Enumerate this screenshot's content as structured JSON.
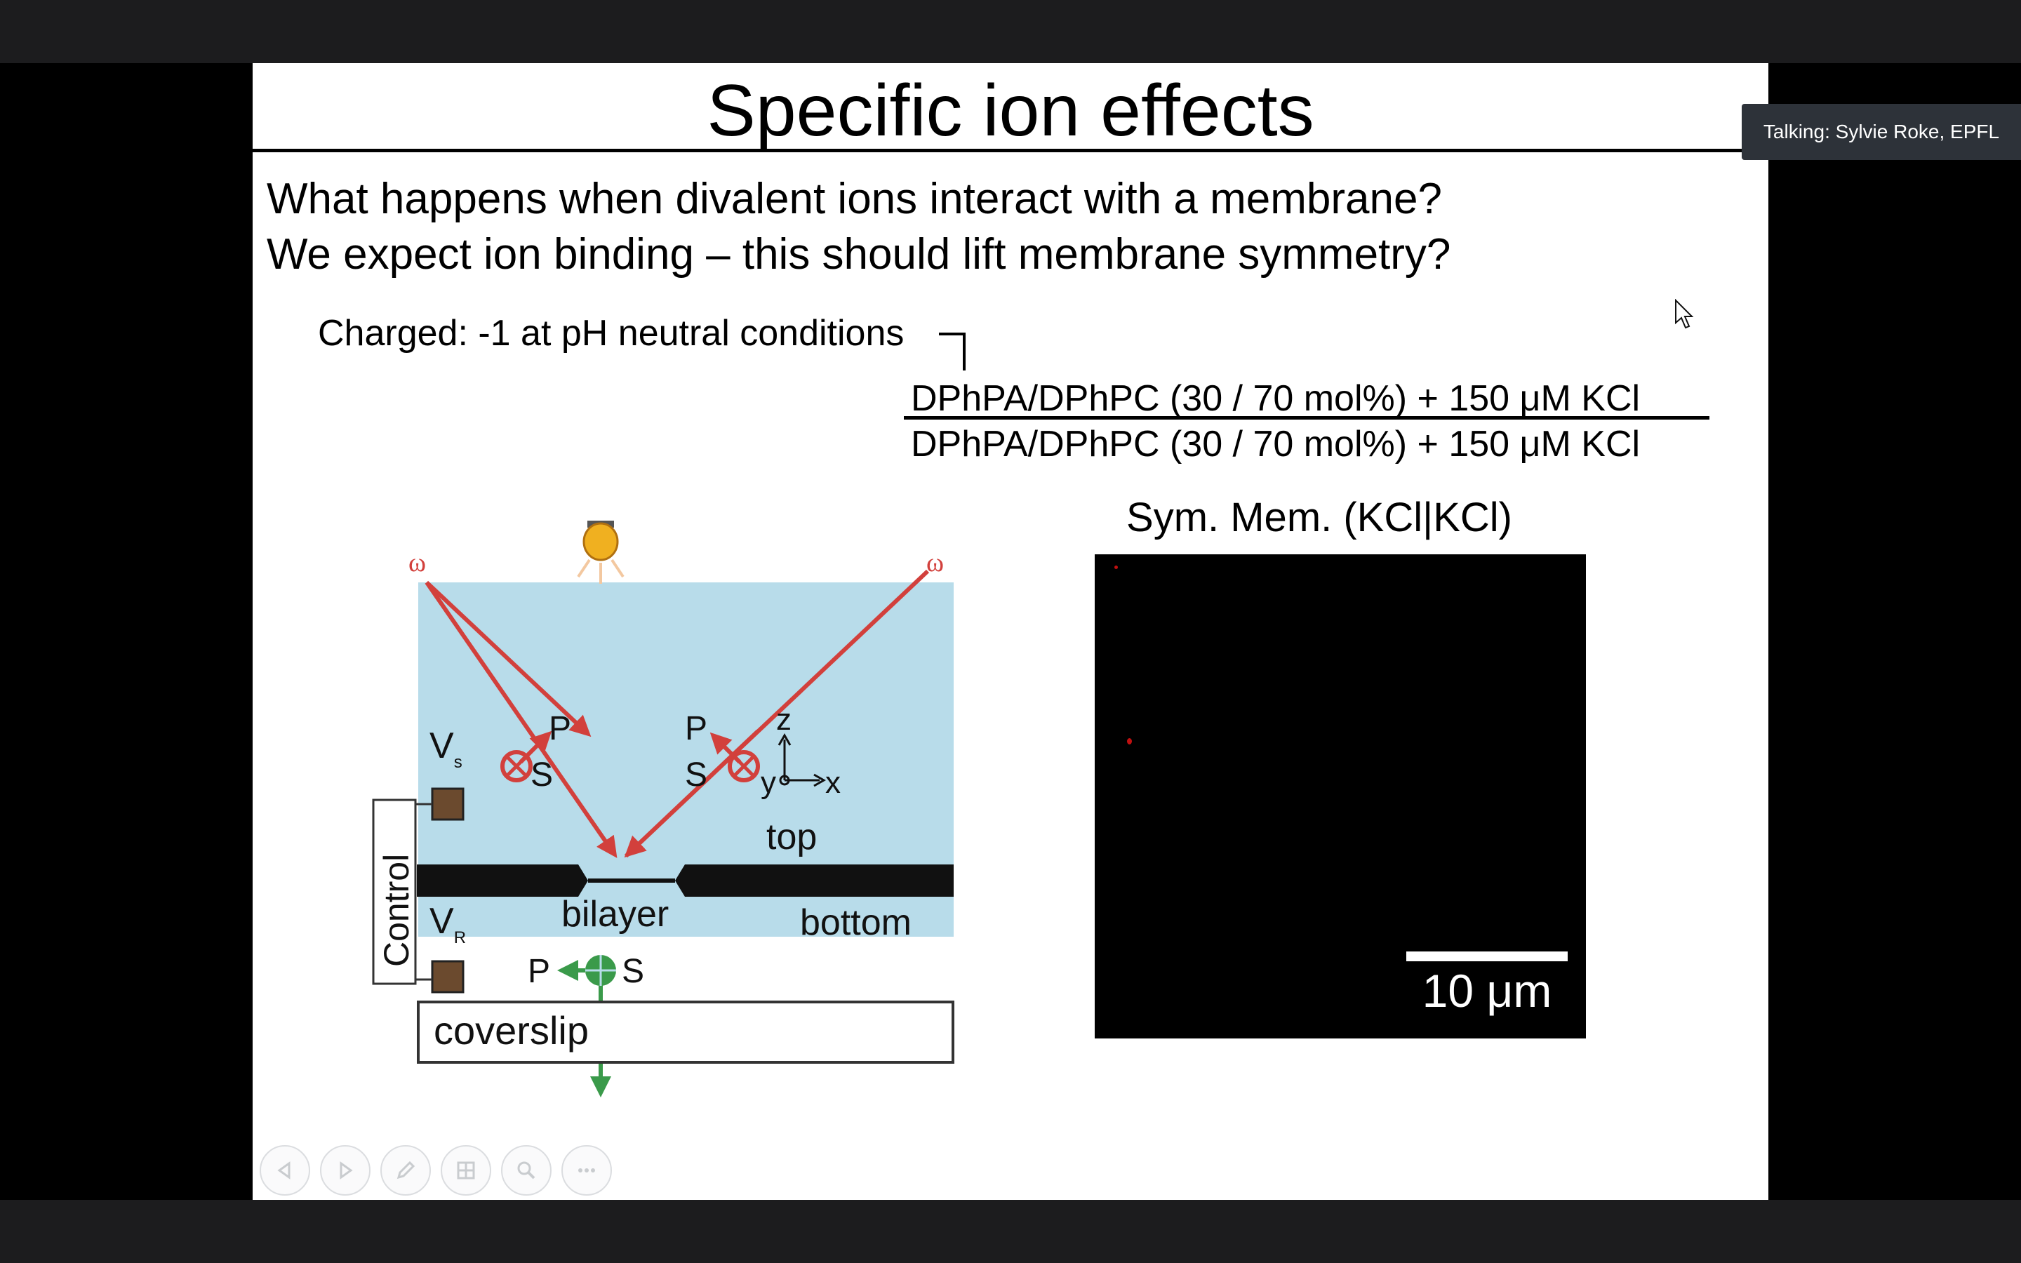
{
  "slide": {
    "title": "Specific ion effects",
    "questions": [
      "What happens when divalent ions interact with a membrane?",
      "We expect ion binding – this should lift membrane symmetry?"
    ],
    "charged_note": "Charged: -1 at pH neutral conditions",
    "membrane": {
      "top": "DPhPA/DPhPC (30 / 70 mol%) + 150 μM KCl",
      "bottom": "DPhPA/DPhPC (30 / 70 mol%) + 150 μM KCl"
    },
    "diagram": {
      "omega_left": "ω",
      "omega_right": "ω",
      "p_left": "P",
      "s_left": "S",
      "p_right": "P",
      "s_right": "S",
      "axis_z": "z",
      "axis_y": "y",
      "axis_x": "x",
      "vs_main": "V",
      "vs_sub": "s",
      "vr_main": "V",
      "vr_sub": "R",
      "control": "Control",
      "top": "top",
      "bottom": "bottom",
      "bilayer": "bilayer",
      "p_out": "P",
      "s_out": "S",
      "coverslip": "coverslip"
    },
    "panel": {
      "title": "Sym. Mem. (KCl|KCl)",
      "scale_label": "10 μm"
    }
  },
  "overlay": {
    "talking": "Talking: Sylvie Roke, EPFL"
  },
  "toolbar": {
    "buttons": [
      "previous-slide",
      "next-slide",
      "pen",
      "slide-grid",
      "zoom",
      "more-options"
    ]
  },
  "colors": {
    "laser_red": "#d2403c",
    "sig_green": "#3a9a4a",
    "water_blue": "#b8dcea",
    "chip_brown": "#6b4a2e"
  }
}
